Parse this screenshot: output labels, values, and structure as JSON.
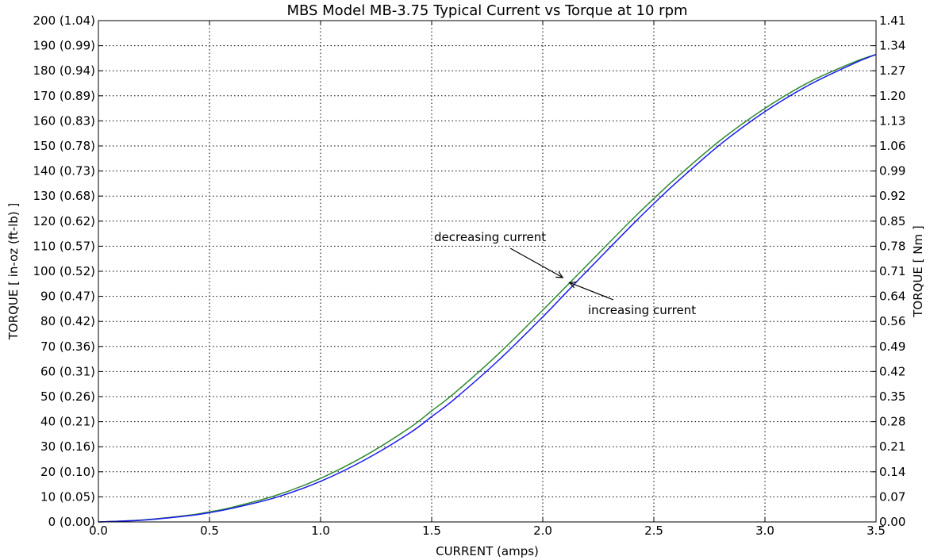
{
  "chart_data": {
    "type": "line",
    "title": "MBS Model MB-3.75 Typical Current vs Torque at 10 rpm",
    "xlabel": "CURRENT (amps)",
    "ylabel": "TORQUE [ in-oz (ft-lb) ]",
    "ylabel_right": "TORQUE [ Nm ]",
    "xlim": [
      0.0,
      3.5
    ],
    "ylim": [
      0,
      200
    ],
    "grid": true,
    "x_ticks": [
      "0.0",
      "0.5",
      "1.0",
      "1.5",
      "2.0",
      "2.5",
      "3.0",
      "3.5"
    ],
    "y_ticks_left": [
      "0 (0.00)",
      "10 (0.05)",
      "20 (0.10)",
      "30 (0.16)",
      "40 (0.21)",
      "50 (0.26)",
      "60 (0.31)",
      "70 (0.36)",
      "80 (0.42)",
      "90 (0.47)",
      "100 (0.52)",
      "110 (0.57)",
      "120 (0.62)",
      "130 (0.68)",
      "140 (0.73)",
      "150 (0.78)",
      "160 (0.83)",
      "170 (0.89)",
      "180 (0.94)",
      "190 (0.99)",
      "200 (1.04)"
    ],
    "y_ticks_right": [
      "0.00",
      "0.07",
      "0.14",
      "0.21",
      "0.28",
      "0.35",
      "0.42",
      "0.49",
      "0.56",
      "0.64",
      "0.71",
      "0.78",
      "0.85",
      "0.92",
      "0.99",
      "1.06",
      "1.13",
      "1.20",
      "1.27",
      "1.34",
      "1.41"
    ],
    "series": [
      {
        "color": "#2e8b2e",
        "x": [
          0.0,
          0.2,
          0.4,
          0.5,
          0.6,
          0.8,
          1.0,
          1.2,
          1.4,
          1.5,
          1.6,
          1.8,
          2.0,
          2.1,
          2.2,
          2.4,
          2.5,
          2.6,
          2.8,
          3.0,
          3.2,
          3.4,
          3.5
        ],
        "y": [
          0,
          0.8,
          2.6,
          4.0,
          5.8,
          10.6,
          17.4,
          26.4,
          37.5,
          44.3,
          51.2,
          67.0,
          84.5,
          93.5,
          102.5,
          120.5,
          129.0,
          137.2,
          152.3,
          165.0,
          175.5,
          183.4,
          186.5
        ]
      },
      {
        "color": "#1a1aee",
        "x": [
          0.0,
          0.2,
          0.4,
          0.5,
          0.6,
          0.8,
          1.0,
          1.2,
          1.4,
          1.5,
          1.6,
          1.8,
          2.0,
          2.1,
          2.2,
          2.4,
          2.5,
          2.6,
          2.8,
          3.0,
          3.2,
          3.4,
          3.5
        ],
        "y": [
          0,
          0.7,
          2.4,
          3.7,
          5.4,
          9.8,
          16.2,
          24.8,
          35.4,
          42.0,
          48.8,
          64.4,
          81.8,
          91.0,
          100.2,
          118.3,
          127.0,
          135.3,
          150.7,
          163.7,
          174.4,
          182.9,
          186.5
        ]
      }
    ],
    "annotations": [
      {
        "text": "decreasing current",
        "point": [
          2.09,
          97.5
        ]
      },
      {
        "text": "increasing current",
        "point": [
          2.12,
          95.5
        ]
      }
    ]
  }
}
